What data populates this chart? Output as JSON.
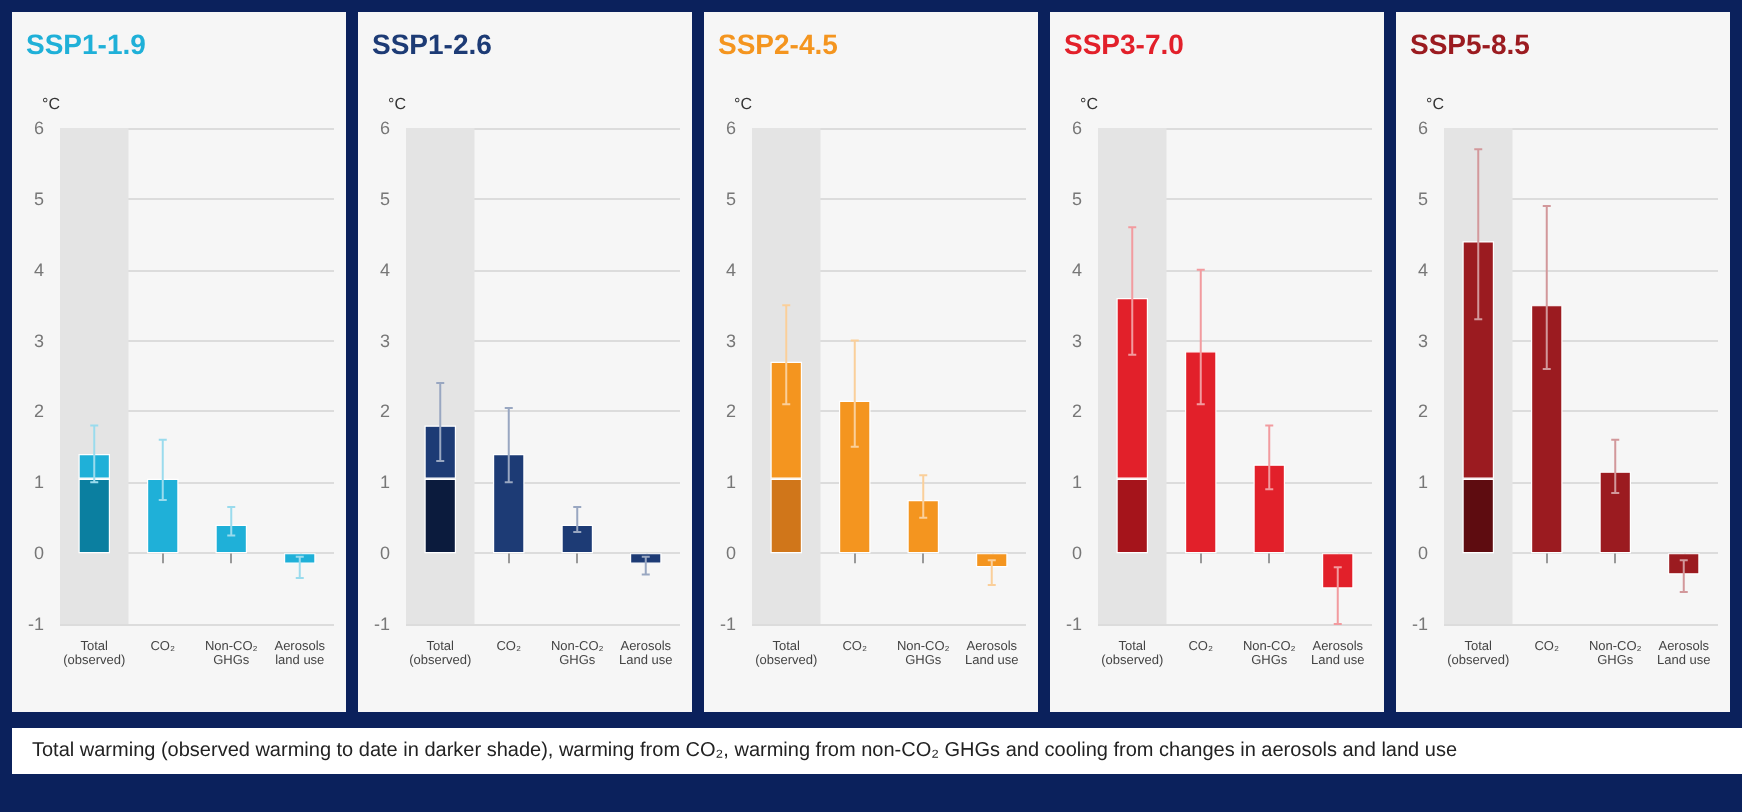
{
  "chart_data": [
    {
      "type": "bar",
      "title": "SSP1-1.9",
      "ylabel": "°C",
      "categories": [
        "Total\n(observed)",
        "CO₂",
        "Non-CO₂\nGHGs",
        "Aerosols\nland use"
      ],
      "stacked": true,
      "ylim": [
        -1,
        6
      ],
      "yticks": [
        -1,
        0,
        1,
        2,
        3,
        4,
        5,
        6
      ],
      "grid": "y",
      "bands": [
        {
          "axis": "x",
          "from": "Total\n(observed)",
          "to": "Total\n(observed)",
          "color": "#e4e4e4"
        }
      ],
      "series": [
        {
          "color": "#0b7fa0",
          "values": [
            1.05,
            null,
            null,
            null
          ]
        },
        {
          "color": "#1fb0d8",
          "values": [
            0.35,
            1.05,
            0.4,
            -0.15
          ],
          "errors": [
            [
              1.0,
              1.8
            ],
            [
              0.75,
              1.6
            ],
            [
              0.25,
              0.65
            ],
            [
              -0.35,
              -0.05
            ]
          ]
        }
      ]
    },
    {
      "type": "bar",
      "title": "SSP1-2.6",
      "ylabel": "°C",
      "categories": [
        "Total\n(observed)",
        "CO₂",
        "Non-CO₂\nGHGs",
        "Aerosols\nLand use"
      ],
      "stacked": true,
      "ylim": [
        -1,
        6
      ],
      "yticks": [
        -1,
        0,
        1,
        2,
        3,
        4,
        5,
        6
      ],
      "grid": "y",
      "bands": [
        {
          "axis": "x",
          "from": "Total\n(observed)",
          "to": "Total\n(observed)",
          "color": "#e4e4e4"
        }
      ],
      "series": [
        {
          "color": "#0b1b3d",
          "values": [
            1.05,
            null,
            null,
            null
          ]
        },
        {
          "color": "#1d3b75",
          "values": [
            0.75,
            1.4,
            0.4,
            -0.15
          ],
          "errors": [
            [
              1.3,
              2.4
            ],
            [
              1.0,
              2.05
            ],
            [
              0.3,
              0.65
            ],
            [
              -0.3,
              -0.05
            ]
          ]
        }
      ]
    },
    {
      "type": "bar",
      "title": "SSP2-4.5",
      "ylabel": "°C",
      "categories": [
        "Total\n(observed)",
        "CO₂",
        "Non-CO₂\nGHGs",
        "Aerosols\nLand use"
      ],
      "stacked": true,
      "ylim": [
        -1,
        6
      ],
      "yticks": [
        -1,
        0,
        1,
        2,
        3,
        4,
        5,
        6
      ],
      "grid": "y",
      "bands": [
        {
          "axis": "x",
          "from": "Total\n(observed)",
          "to": "Total\n(observed)",
          "color": "#e4e4e4"
        }
      ],
      "series": [
        {
          "color": "#d0761a",
          "values": [
            1.05,
            null,
            null,
            null
          ]
        },
        {
          "color": "#f4951f",
          "values": [
            1.65,
            2.15,
            0.75,
            -0.2
          ],
          "errors": [
            [
              2.1,
              3.5
            ],
            [
              1.5,
              3.0
            ],
            [
              0.5,
              1.1
            ],
            [
              -0.45,
              -0.1
            ]
          ]
        }
      ]
    },
    {
      "type": "bar",
      "title": "SSP3-7.0",
      "ylabel": "°C",
      "categories": [
        "Total\n(observed)",
        "CO₂",
        "Non-CO₂\nGHGs",
        "Aerosols\nLand use"
      ],
      "stacked": true,
      "ylim": [
        -1,
        6
      ],
      "yticks": [
        -1,
        0,
        1,
        2,
        3,
        4,
        5,
        6
      ],
      "grid": "y",
      "bands": [
        {
          "axis": "x",
          "from": "Total\n(observed)",
          "to": "Total\n(observed)",
          "color": "#e4e4e4"
        }
      ],
      "series": [
        {
          "color": "#a5141b",
          "values": [
            1.05,
            null,
            null,
            null
          ]
        },
        {
          "color": "#e2202a",
          "values": [
            2.55,
            2.85,
            1.25,
            -0.5
          ],
          "errors": [
            [
              2.8,
              4.6
            ],
            [
              2.1,
              4.0
            ],
            [
              0.9,
              1.8
            ],
            [
              -1.0,
              -0.2
            ]
          ]
        }
      ]
    },
    {
      "type": "bar",
      "title": "SSP5-8.5",
      "ylabel": "°C",
      "categories": [
        "Total\n(observed)",
        "CO₂",
        "Non-CO₂\nGHGs",
        "Aerosols\nLand use"
      ],
      "stacked": true,
      "ylim": [
        -1,
        6
      ],
      "yticks": [
        -1,
        0,
        1,
        2,
        3,
        4,
        5,
        6
      ],
      "grid": "y",
      "bands": [
        {
          "axis": "x",
          "from": "Total\n(observed)",
          "to": "Total\n(observed)",
          "color": "#e4e4e4"
        }
      ],
      "series": [
        {
          "color": "#5e0c10",
          "values": [
            1.05,
            null,
            null,
            null
          ]
        },
        {
          "color": "#9b1b20",
          "values": [
            3.35,
            3.5,
            1.15,
            -0.3
          ],
          "errors": [
            [
              3.3,
              5.7
            ],
            [
              2.6,
              4.9
            ],
            [
              0.85,
              1.6
            ],
            [
              -0.55,
              -0.1
            ]
          ]
        }
      ]
    },
    {
      "type": "other",
      "annotations": [
        "Total warming (observed warming to date in darker shade), warming from CO₂, warming from non-CO₂ GHGs and cooling from changes in aerosols and land use"
      ]
    }
  ]
}
